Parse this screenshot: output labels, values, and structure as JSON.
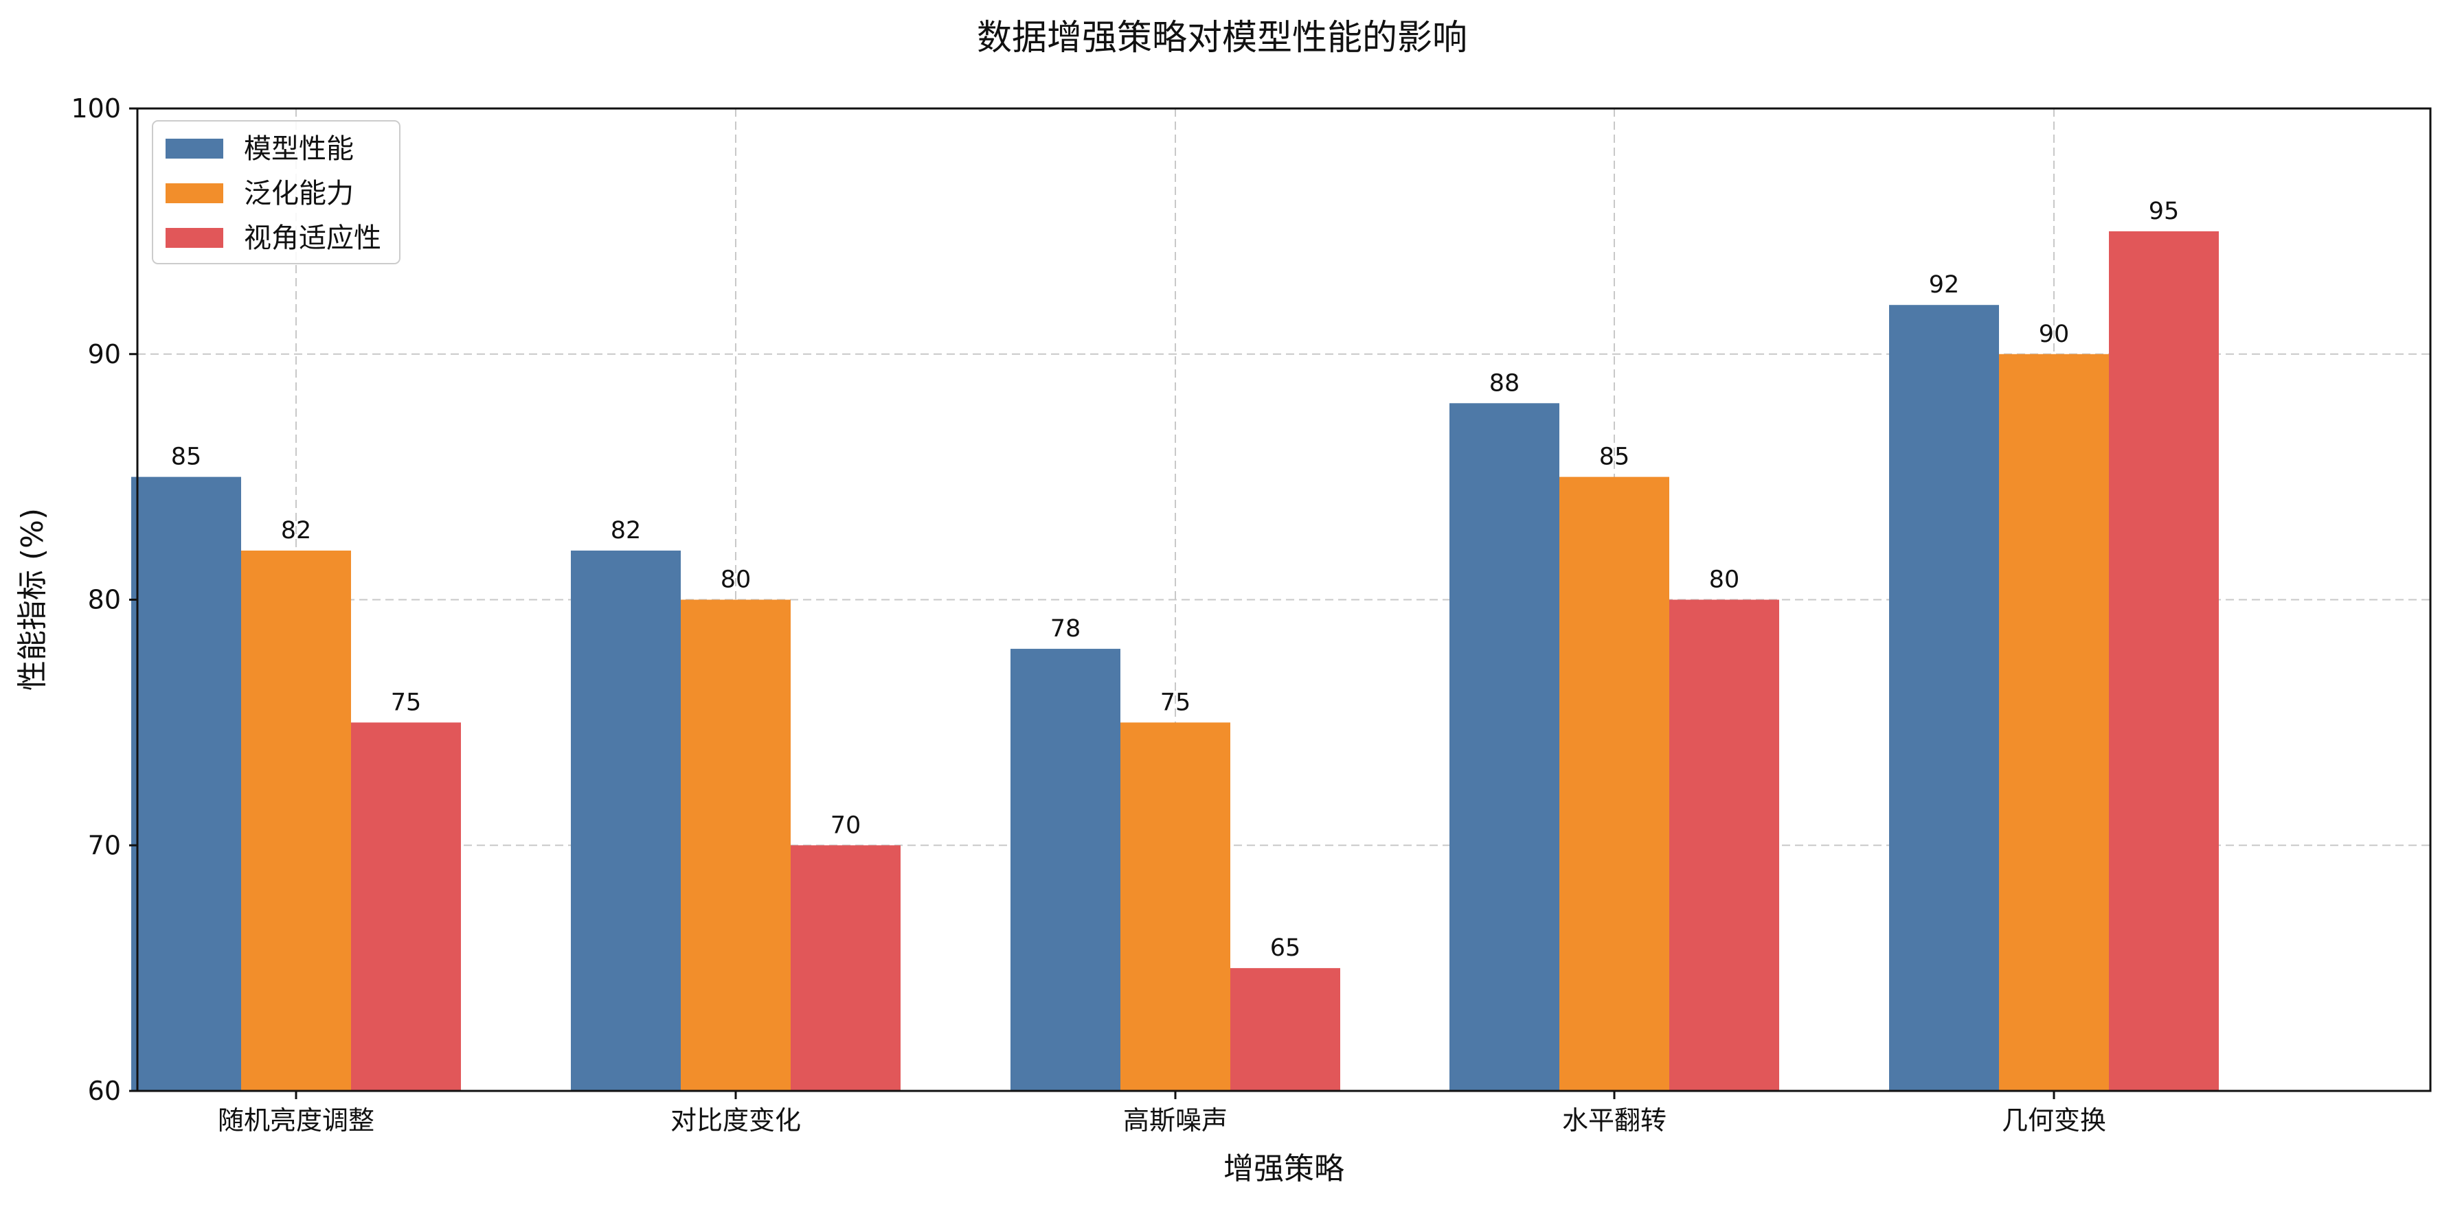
{
  "chart_data": {
    "type": "bar",
    "title": "数据增强策略对模型性能的影响",
    "xlabel": "增强策略",
    "ylabel": "性能指标 (%)",
    "ylim": [
      60,
      100
    ],
    "yticks": [
      60,
      70,
      80,
      90,
      100
    ],
    "grid": true,
    "legend_position": "top-left",
    "categories": [
      "随机亮度调整",
      "对比度变化",
      "高斯噪声",
      "水平翻转",
      "几何变换"
    ],
    "series": [
      {
        "name": "模型性能",
        "color": "#4e79a7",
        "values": [
          85,
          82,
          78,
          88,
          92
        ]
      },
      {
        "name": "泛化能力",
        "color": "#f28e2b",
        "values": [
          82,
          80,
          75,
          85,
          90
        ]
      },
      {
        "name": "视角适应性",
        "color": "#e15759",
        "values": [
          75,
          70,
          65,
          80,
          95
        ]
      }
    ]
  }
}
